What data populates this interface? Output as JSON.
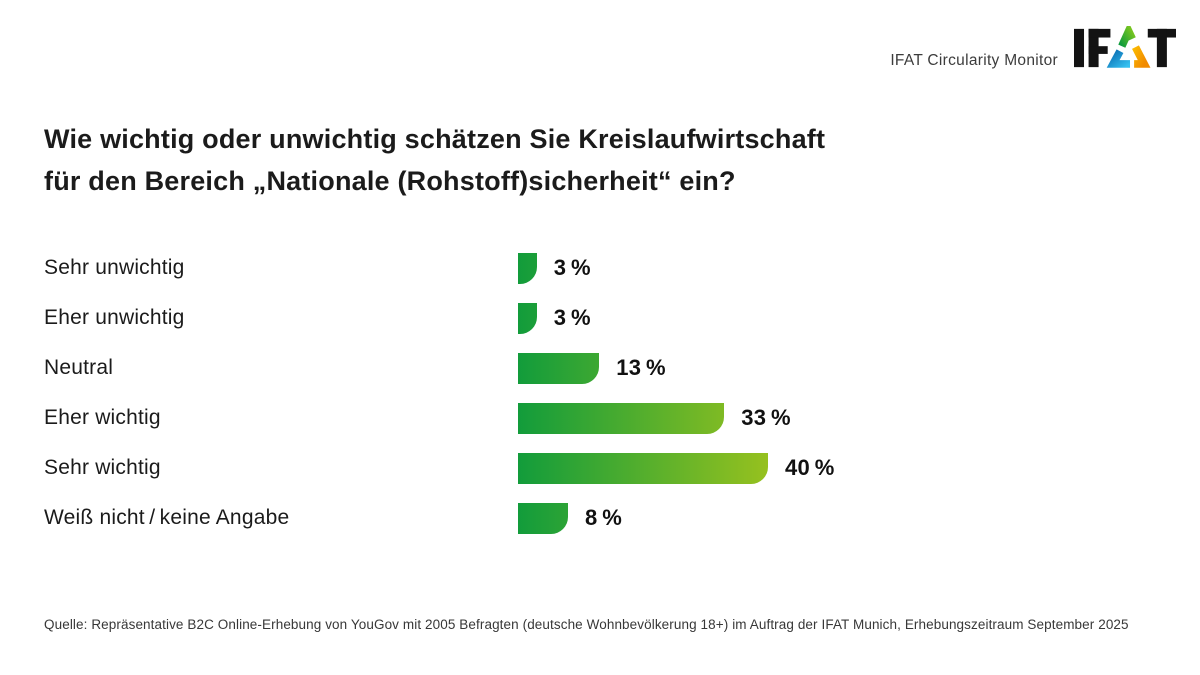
{
  "header": {
    "brand_text": "IFAT Circularity Monitor",
    "logo_text": "IFAT"
  },
  "title": {
    "line1": "Wie wichtig oder unwichtig schätzen Sie Kreislaufwirtschaft",
    "line2": "für den Bereich „Nationale (Rohstoff)sicherheit“ ein?"
  },
  "chart_data": {
    "type": "bar",
    "orientation": "horizontal",
    "title": "Wie wichtig oder unwichtig schätzen Sie Kreislaufwirtschaft für den Bereich „Nationale (Rohstoff)sicherheit“ ein?",
    "categories": [
      "Sehr unwichtig",
      "Eher unwichtig",
      "Neutral",
      "Eher wichtig",
      "Sehr wichtig",
      "Weiß nicht / keine Angabe"
    ],
    "values": [
      3,
      3,
      13,
      33,
      40,
      8
    ],
    "value_labels": [
      "3 %",
      "3 %",
      "13 %",
      "33 %",
      "40 %",
      "8 %"
    ],
    "unit": "%",
    "xlim": [
      0,
      40
    ],
    "grid": false,
    "value_label_position": "right-of-bar",
    "bar_gradient": {
      "start": "#129c3b",
      "end": "#96c11f"
    }
  },
  "source": {
    "text": "Quelle: Repräsentative B2C Online-Erhebung von YouGov mit 2005 Befragten (deutsche Wohnbevölkerung 18+) im Auftrag der IFAT Munich, Erhebungszeitraum September 2025"
  }
}
